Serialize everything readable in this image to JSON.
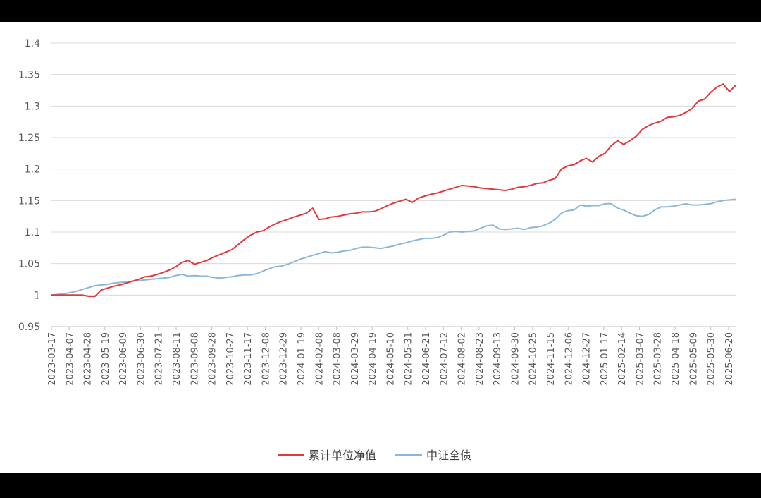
{
  "chart_data": {
    "type": "line",
    "title": "",
    "xlabel": "",
    "ylabel": "",
    "ylim": [
      0.95,
      1.4
    ],
    "yticks": [
      "0.95",
      "1",
      "1.05",
      "1.1",
      "1.15",
      "1.2",
      "1.25",
      "1.3",
      "1.35",
      "1.4"
    ],
    "grid": true,
    "legend": "bottom",
    "x_tick_labels": [
      "2023-03-17",
      "2023-04-07",
      "2023-04-28",
      "2023-05-19",
      "2023-06-09",
      "2023-06-30",
      "2023-07-21",
      "2023-08-11",
      "2023-09-08",
      "2023-09-28",
      "2023-10-27",
      "2023-11-17",
      "2023-12-08",
      "2023-12-29",
      "2024-01-19",
      "2024-02-08",
      "2024-03-08",
      "2024-03-29",
      "2024-04-19",
      "2024-05-10",
      "2024-05-31",
      "2024-06-21",
      "2024-07-12",
      "2024-08-02",
      "2024-08-23",
      "2024-09-13",
      "2024-09-30",
      "2024-10-25",
      "2024-11-15",
      "2024-12-06",
      "2024-12-27",
      "2025-01-17",
      "2025-02-14",
      "2025-03-07",
      "2025-03-28",
      "2025-04-18",
      "2025-05-09",
      "2025-05-30",
      "2025-06-20"
    ],
    "series": [
      {
        "name": "累计单位净值",
        "color": "#e0393e",
        "values": [
          1.0,
          1.0,
          1.0,
          1.0,
          1.0,
          1.0,
          0.998,
          0.998,
          1.008,
          1.011,
          1.014,
          1.016,
          1.019,
          1.022,
          1.025,
          1.029,
          1.03,
          1.033,
          1.036,
          1.04,
          1.045,
          1.052,
          1.055,
          1.049,
          1.052,
          1.055,
          1.06,
          1.064,
          1.068,
          1.072,
          1.08,
          1.088,
          1.095,
          1.1,
          1.102,
          1.108,
          1.113,
          1.117,
          1.12,
          1.124,
          1.127,
          1.13,
          1.138,
          1.12,
          1.121,
          1.124,
          1.125,
          1.127,
          1.129,
          1.13,
          1.132,
          1.132,
          1.133,
          1.137,
          1.142,
          1.146,
          1.149,
          1.152,
          1.147,
          1.154,
          1.157,
          1.16,
          1.162,
          1.165,
          1.168,
          1.171,
          1.174,
          1.173,
          1.172,
          1.17,
          1.169,
          1.168,
          1.167,
          1.166,
          1.168,
          1.171,
          1.172,
          1.174,
          1.177,
          1.178,
          1.182,
          1.185,
          1.2,
          1.205,
          1.207,
          1.213,
          1.217,
          1.211,
          1.22,
          1.225,
          1.237,
          1.245,
          1.239,
          1.245,
          1.252,
          1.263,
          1.269,
          1.273,
          1.276,
          1.282,
          1.283,
          1.285,
          1.29,
          1.296,
          1.308,
          1.311,
          1.322,
          1.33,
          1.335,
          1.323,
          1.333
        ]
      },
      {
        "name": "中证全债",
        "color": "#8db7d8",
        "values": [
          1.0,
          1.001,
          1.002,
          1.004,
          1.006,
          1.009,
          1.012,
          1.015,
          1.016,
          1.017,
          1.019,
          1.02,
          1.021,
          1.022,
          1.023,
          1.024,
          1.025,
          1.026,
          1.027,
          1.028,
          1.031,
          1.033,
          1.03,
          1.031,
          1.03,
          1.03,
          1.028,
          1.027,
          1.028,
          1.029,
          1.031,
          1.032,
          1.032,
          1.034,
          1.038,
          1.042,
          1.045,
          1.046,
          1.049,
          1.053,
          1.057,
          1.06,
          1.063,
          1.066,
          1.069,
          1.067,
          1.068,
          1.07,
          1.071,
          1.074,
          1.076,
          1.076,
          1.075,
          1.074,
          1.076,
          1.078,
          1.081,
          1.083,
          1.086,
          1.088,
          1.09,
          1.09,
          1.091,
          1.095,
          1.1,
          1.101,
          1.1,
          1.101,
          1.102,
          1.106,
          1.11,
          1.111,
          1.105,
          1.104,
          1.105,
          1.106,
          1.104,
          1.107,
          1.108,
          1.11,
          1.114,
          1.12,
          1.13,
          1.134,
          1.135,
          1.143,
          1.141,
          1.142,
          1.142,
          1.145,
          1.145,
          1.138,
          1.135,
          1.13,
          1.126,
          1.125,
          1.128,
          1.135,
          1.14,
          1.14,
          1.141,
          1.143,
          1.145,
          1.143,
          1.143,
          1.144,
          1.145,
          1.148,
          1.15,
          1.151,
          1.152
        ]
      }
    ]
  }
}
